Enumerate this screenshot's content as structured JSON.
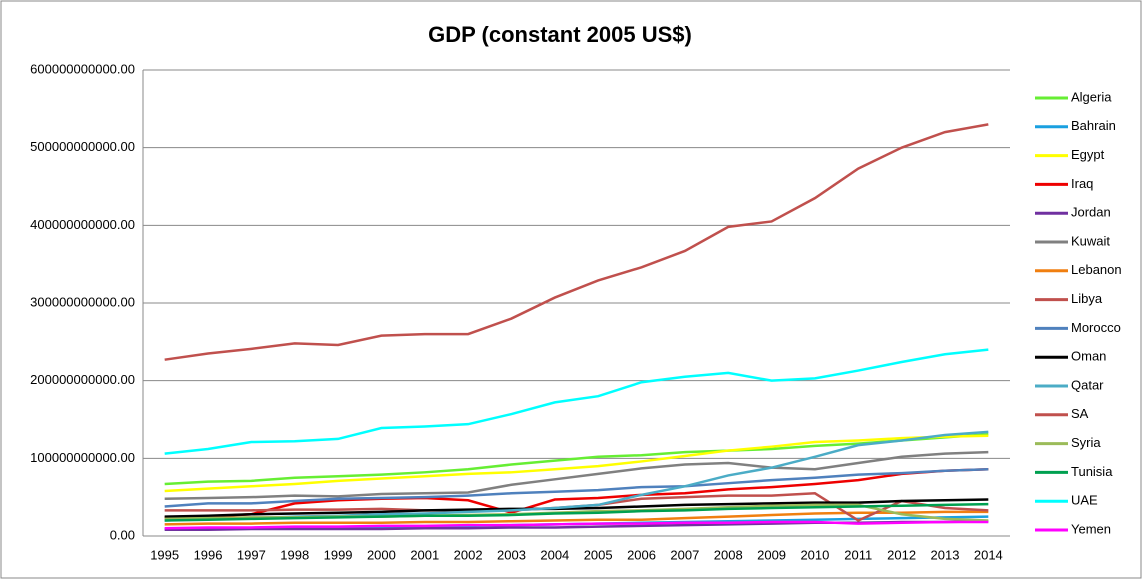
{
  "chart_data": {
    "type": "line",
    "title": "GDP (constant 2005 US$)",
    "categories": [
      "1995",
      "1996",
      "1997",
      "1998",
      "1999",
      "2000",
      "2001",
      "2002",
      "2003",
      "2004",
      "2005",
      "2006",
      "2007",
      "2008",
      "2009",
      "2010",
      "2011",
      "2012",
      "2013",
      "2014"
    ],
    "ylim": [
      0,
      600000000000
    ],
    "yticks": [
      {
        "value": 0,
        "label": "0.00"
      },
      {
        "value": 100000000000,
        "label": "100000000000.00"
      },
      {
        "value": 200000000000,
        "label": "200000000000.00"
      },
      {
        "value": 300000000000,
        "label": "300000000000.00"
      },
      {
        "value": 400000000000,
        "label": "400000000000.00"
      },
      {
        "value": 500000000000,
        "label": "500000000000.00"
      },
      {
        "value": 600000000000,
        "label": "600000000000.00"
      }
    ],
    "grid": true,
    "legend": "right",
    "series": [
      {
        "name": "Algeria",
        "color": "#66ee33",
        "values": [
          67000000000.0,
          70000000000.0,
          71000000000.0,
          75000000000.0,
          77000000000.0,
          79000000000.0,
          82000000000.0,
          86000000000.0,
          92000000000.0,
          97000000000.0,
          102000000000.0,
          104000000000.0,
          108000000000.0,
          110000000000.0,
          112000000000.0,
          116000000000.0,
          119000000000.0,
          123000000000.0,
          127000000000.0,
          131000000000.0
        ]
      },
      {
        "name": "Bahrain",
        "color": "#1aa0e0",
        "values": [
          9000000000.0,
          10000000000.0,
          10000000000.0,
          10000000000.0,
          11000000000.0,
          11000000000.0,
          12000000000.0,
          13000000000.0,
          14000000000.0,
          15000000000.0,
          16000000000.0,
          17000000000.0,
          18000000000.0,
          19000000000.0,
          20000000000.0,
          21000000000.0,
          22000000000.0,
          23000000000.0,
          24000000000.0,
          25000000000.0
        ]
      },
      {
        "name": "Egypt",
        "color": "#ffff00",
        "values": [
          58000000000.0,
          61000000000.0,
          64000000000.0,
          67000000000.0,
          71000000000.0,
          74000000000.0,
          77000000000.0,
          80000000000.0,
          82000000000.0,
          86000000000.0,
          90000000000.0,
          96000000000.0,
          103000000000.0,
          110000000000.0,
          115000000000.0,
          121000000000.0,
          123000000000.0,
          126000000000.0,
          128000000000.0,
          129000000000.0
        ]
      },
      {
        "name": "Iraq",
        "color": "#ee0000",
        "values": [
          24000000000.0,
          25000000000.0,
          28000000000.0,
          42000000000.0,
          46000000000.0,
          48000000000.0,
          49000000000.0,
          46000000000.0,
          30000000000.0,
          47000000000.0,
          49000000000.0,
          53000000000.0,
          55000000000.0,
          60000000000.0,
          63000000000.0,
          67000000000.0,
          72000000000.0,
          80000000000.0,
          84000000000.0,
          86000000000.0
        ]
      },
      {
        "name": "Jordan",
        "color": "#7030a0",
        "values": [
          8000000000.0,
          8000000000.0,
          9000000000.0,
          9000000000.0,
          9000000000.0,
          9000000000.0,
          10000000000.0,
          10000000000.0,
          11000000000.0,
          11000000000.0,
          12000000000.0,
          13000000000.0,
          14000000000.0,
          15000000000.0,
          16000000000.0,
          17000000000.0,
          17000000000.0,
          18000000000.0,
          18000000000.0,
          19000000000.0
        ]
      },
      {
        "name": "Kuwait",
        "color": "#808080",
        "values": [
          48000000000.0,
          49000000000.0,
          50000000000.0,
          52000000000.0,
          51000000000.0,
          54000000000.0,
          55000000000.0,
          56000000000.0,
          66000000000.0,
          73000000000.0,
          80000000000.0,
          87000000000.0,
          92000000000.0,
          94000000000.0,
          88000000000.0,
          86000000000.0,
          94000000000.0,
          102000000000.0,
          106000000000.0,
          108000000000.0
        ]
      },
      {
        "name": "Lebanon",
        "color": "#f07f10",
        "values": [
          15000000000.0,
          16000000000.0,
          16000000000.0,
          17000000000.0,
          17000000000.0,
          17000000000.0,
          18000000000.0,
          18000000000.0,
          19000000000.0,
          20000000000.0,
          21000000000.0,
          21000000000.0,
          23000000000.0,
          25000000000.0,
          27000000000.0,
          29000000000.0,
          30000000000.0,
          30000000000.0,
          31000000000.0,
          31000000000.0
        ]
      },
      {
        "name": "Libya",
        "color": "#c0504d",
        "values": [
          33000000000.0,
          33000000000.0,
          33000000000.0,
          34000000000.0,
          34000000000.0,
          35000000000.0,
          33000000000.0,
          33000000000.0,
          33000000000.0,
          36000000000.0,
          40000000000.0,
          48000000000.0,
          50000000000.0,
          52000000000.0,
          52000000000.0,
          55000000000.0,
          20000000000.0,
          45000000000.0,
          36000000000.0,
          33000000000.0
        ]
      },
      {
        "name": "Morocco",
        "color": "#4f81bd",
        "values": [
          38000000000.0,
          42000000000.0,
          42000000000.0,
          45000000000.0,
          48000000000.0,
          49000000000.0,
          50000000000.0,
          52000000000.0,
          55000000000.0,
          57000000000.0,
          59000000000.0,
          63000000000.0,
          64000000000.0,
          68000000000.0,
          72000000000.0,
          75000000000.0,
          79000000000.0,
          81000000000.0,
          84000000000.0,
          86000000000.0
        ]
      },
      {
        "name": "Oman",
        "color": "#000000",
        "values": [
          25000000000.0,
          26000000000.0,
          28000000000.0,
          29000000000.0,
          30000000000.0,
          31000000000.0,
          33000000000.0,
          34000000000.0,
          35000000000.0,
          35000000000.0,
          36000000000.0,
          38000000000.0,
          40000000000.0,
          41000000000.0,
          42000000000.0,
          43000000000.0,
          43000000000.0,
          45000000000.0,
          46000000000.0,
          47000000000.0
        ]
      },
      {
        "name": "Qatar",
        "color": "#4bacc6",
        "values": [
          20000000000.0,
          22000000000.0,
          23000000000.0,
          25000000000.0,
          26000000000.0,
          28000000000.0,
          29000000000.0,
          31000000000.0,
          33000000000.0,
          36000000000.0,
          40000000000.0,
          53000000000.0,
          64000000000.0,
          78000000000.0,
          88000000000.0,
          102000000000.0,
          117000000000.0,
          123000000000.0,
          130000000000.0,
          134000000000.0
        ]
      },
      {
        "name": "SA",
        "color": "#c0504d",
        "values": [
          227000000000.0,
          235000000000.0,
          241000000000.0,
          248000000000.0,
          246000000000.0,
          258000000000.0,
          260000000000.0,
          260000000000.0,
          280000000000.0,
          307000000000.0,
          329000000000.0,
          346000000000.0,
          367000000000.0,
          398000000000.0,
          405000000000.0,
          435000000000.0,
          473000000000.0,
          500000000000.0,
          520000000000.0,
          530000000000.0
        ]
      },
      {
        "name": "Syria",
        "color": "#9bbb59",
        "values": [
          22000000000.0,
          23000000000.0,
          24000000000.0,
          24000000000.0,
          25000000000.0,
          25000000000.0,
          26000000000.0,
          27000000000.0,
          28000000000.0,
          30000000000.0,
          32000000000.0,
          33000000000.0,
          35000000000.0,
          37000000000.0,
          39000000000.0,
          40000000000.0,
          40000000000.0,
          28000000000.0,
          22000000000.0,
          20000000000.0
        ]
      },
      {
        "name": "Tunisia",
        "color": "#00a050",
        "values": [
          20000000000.0,
          21000000000.0,
          22000000000.0,
          23000000000.0,
          24000000000.0,
          25000000000.0,
          26000000000.0,
          26000000000.0,
          27000000000.0,
          29000000000.0,
          30000000000.0,
          32000000000.0,
          33000000000.0,
          35000000000.0,
          36000000000.0,
          37000000000.0,
          38000000000.0,
          39000000000.0,
          40000000000.0,
          41000000000.0
        ]
      },
      {
        "name": "UAE",
        "color": "#00ffff",
        "values": [
          106000000000.0,
          112000000000.0,
          121000000000.0,
          122000000000.0,
          125000000000.0,
          139000000000.0,
          141000000000.0,
          144000000000.0,
          157000000000.0,
          172000000000.0,
          180000000000.0,
          198000000000.0,
          205000000000.0,
          210000000000.0,
          200000000000.0,
          203000000000.0,
          213000000000.0,
          224000000000.0,
          234000000000.0,
          240000000000.0
        ]
      },
      {
        "name": "Yemen",
        "color": "#ff00ff",
        "values": [
          10000000000.0,
          11000000000.0,
          11000000000.0,
          12000000000.0,
          12000000000.0,
          13000000000.0,
          13000000000.0,
          14000000000.0,
          14000000000.0,
          15000000000.0,
          16000000000.0,
          16000000000.0,
          17000000000.0,
          17000000000.0,
          18000000000.0,
          18000000000.0,
          16000000000.0,
          17000000000.0,
          18000000000.0,
          18000000000.0
        ]
      }
    ]
  }
}
